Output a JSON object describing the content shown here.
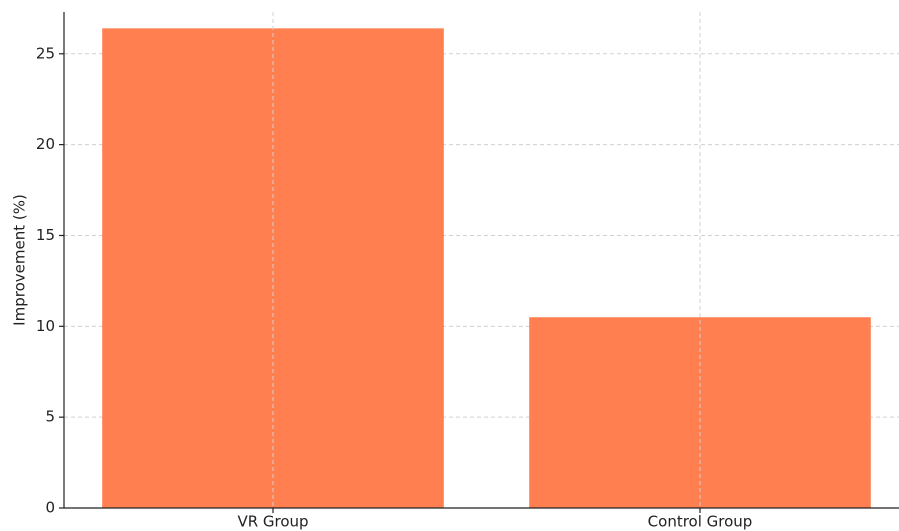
{
  "chart_data": {
    "type": "bar",
    "ylabel": "Improvement (%)",
    "categories": [
      "VR Group",
      "Control Group"
    ],
    "values": [
      26.4,
      10.5
    ],
    "color": "#ff7f50",
    "ylim": [
      0,
      27.3
    ],
    "yticks": [
      0,
      5,
      10,
      15,
      20,
      25
    ],
    "grid": true
  }
}
